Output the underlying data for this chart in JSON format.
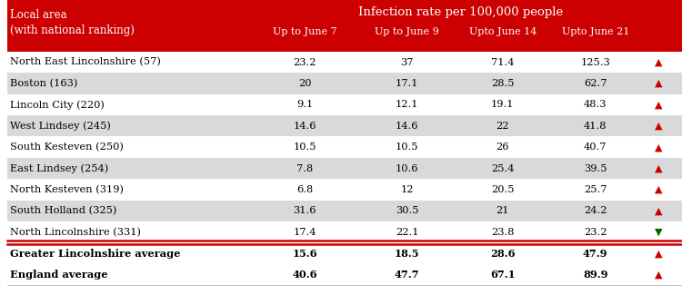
{
  "header_title": "Infection rate per 100,000 people",
  "col_header_left1": "Local area",
  "col_header_left2": "(with national ranking)",
  "col_headers": [
    "Up to June 7",
    "Up to June 9",
    "Upto June 14",
    "Upto June 21"
  ],
  "rows": [
    {
      "name": "North East Lincolnshire (57)",
      "values": [
        "23.2",
        "37",
        "71.4",
        "125.3"
      ],
      "arrow": "up",
      "bold": false
    },
    {
      "name": "Boston (163)",
      "values": [
        "20",
        "17.1",
        "28.5",
        "62.7"
      ],
      "arrow": "up",
      "bold": false
    },
    {
      "name": "Lincoln City (220)",
      "values": [
        "9.1",
        "12.1",
        "19.1",
        "48.3"
      ],
      "arrow": "up",
      "bold": false
    },
    {
      "name": "West Lindsey (245)",
      "values": [
        "14.6",
        "14.6",
        "22",
        "41.8"
      ],
      "arrow": "up",
      "bold": false
    },
    {
      "name": "South Kesteven (250)",
      "values": [
        "10.5",
        "10.5",
        "26",
        "40.7"
      ],
      "arrow": "up",
      "bold": false
    },
    {
      "name": "East Lindsey (254)",
      "values": [
        "7.8",
        "10.6",
        "25.4",
        "39.5"
      ],
      "arrow": "up",
      "bold": false
    },
    {
      "name": "North Kesteven (319)",
      "values": [
        "6.8",
        "12",
        "20.5",
        "25.7"
      ],
      "arrow": "up",
      "bold": false
    },
    {
      "name": "South Holland (325)",
      "values": [
        "31.6",
        "30.5",
        "21",
        "24.2"
      ],
      "arrow": "up",
      "bold": false
    },
    {
      "name": "North Lincolnshire (331)",
      "values": [
        "17.4",
        "22.1",
        "23.8",
        "23.2"
      ],
      "arrow": "down",
      "bold": false
    }
  ],
  "summary_rows": [
    {
      "name": "Greater Lincolnshire average",
      "values": [
        "15.6",
        "18.5",
        "28.6",
        "47.9"
      ],
      "arrow": "up",
      "bold": true
    },
    {
      "name": "England average",
      "values": [
        "40.6",
        "47.7",
        "67.1",
        "89.9"
      ],
      "arrow": "up",
      "bold": true
    }
  ],
  "header_bg": "#cc0000",
  "header_text_color": "#ffffff",
  "row_bg_even": "#ffffff",
  "row_bg_odd": "#d9d9d9",
  "summary_bg": "#ffffff",
  "arrow_up_color": "#cc0000",
  "arrow_down_color": "#006600",
  "border_color": "#cc0000",
  "text_color": "#000000",
  "figsize": [
    7.5,
    3.25
  ],
  "dpi": 100
}
